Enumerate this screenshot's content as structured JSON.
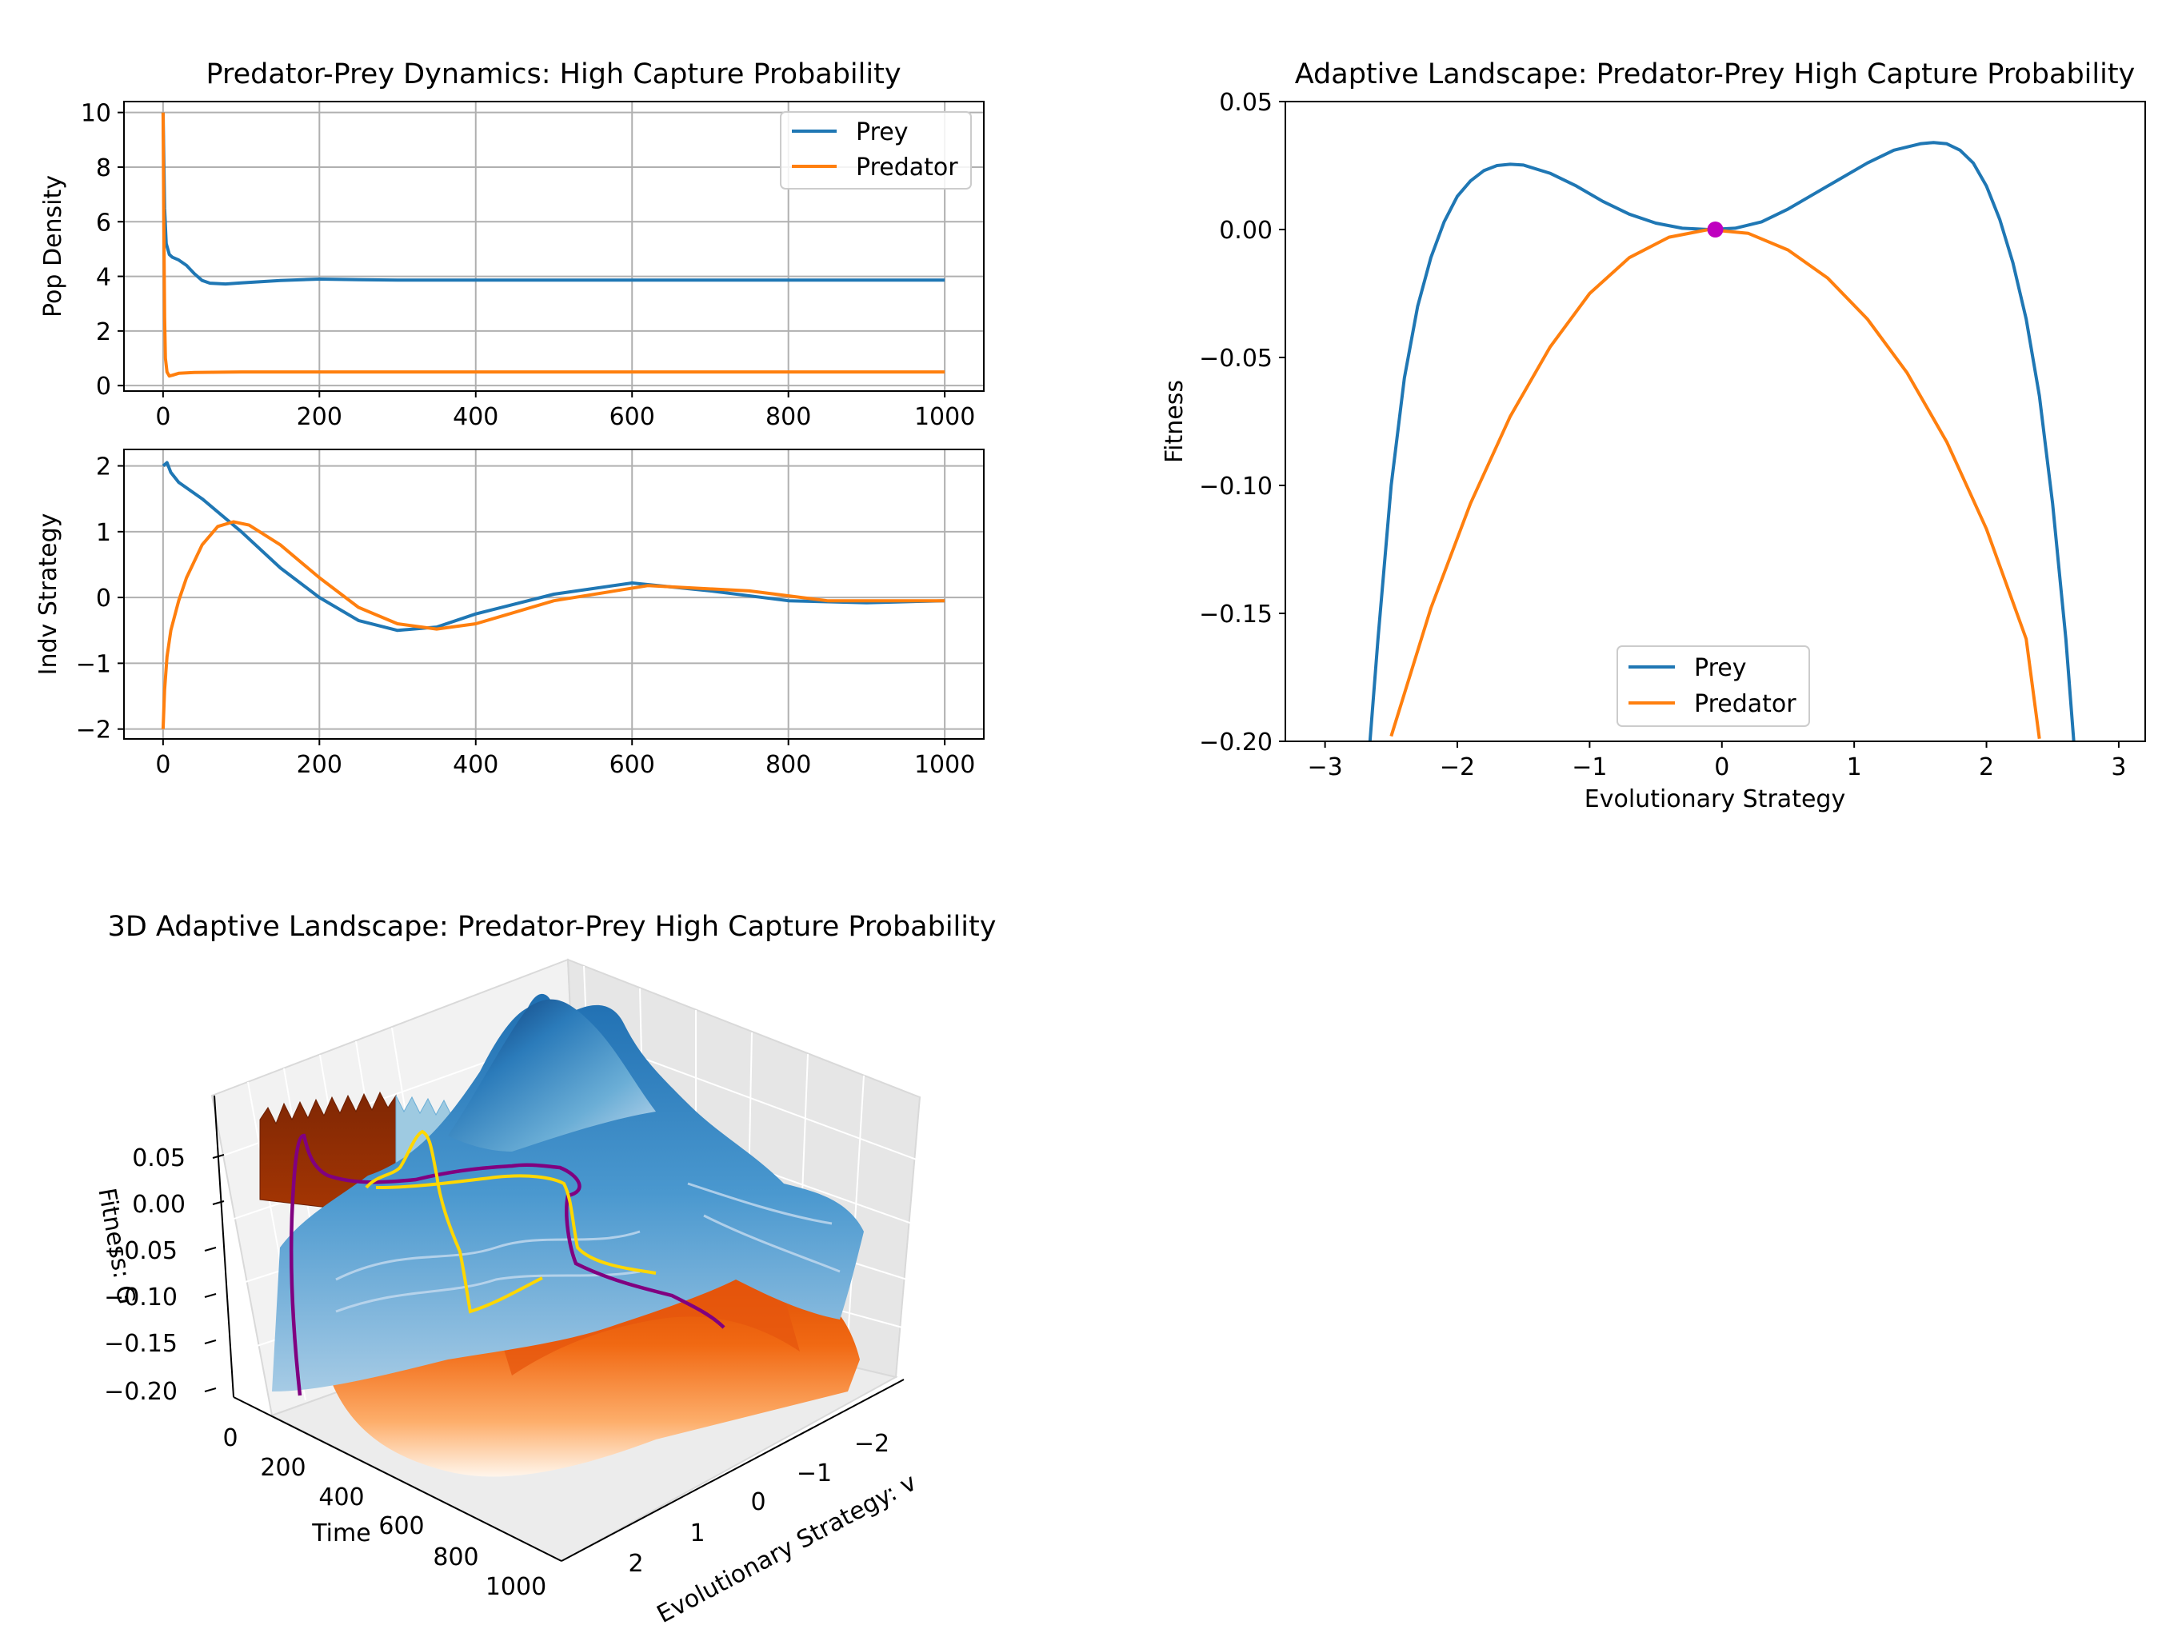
{
  "colors": {
    "prey": "#1f77b4",
    "predator": "#ff7f0e",
    "eq_point": "#bf00bf",
    "prey_traj3d": "#800080",
    "pred_traj3d": "#ffd700",
    "grid": "#b0b0b0"
  },
  "chart_data": [
    {
      "type": "line",
      "title": "Predator-Prey Dynamics: High Capture Probability",
      "xlabel": "",
      "ylabel": "Pop Density",
      "xlim": [
        -50,
        1050
      ],
      "ylim": [
        -0.2,
        10.4
      ],
      "xticks": [
        "0",
        "200",
        "400",
        "600",
        "800",
        "1000"
      ],
      "yticks": [
        "0",
        "2",
        "4",
        "6",
        "8",
        "10"
      ],
      "xtick_values": [
        0,
        200,
        400,
        600,
        800,
        1000
      ],
      "ytick_values": [
        0,
        2,
        4,
        6,
        8,
        10
      ],
      "grid": true,
      "legend_position": "upper right",
      "series": [
        {
          "name": "Prey",
          "x": [
            0,
            2,
            4,
            8,
            12,
            20,
            30,
            40,
            50,
            60,
            80,
            100,
            150,
            200,
            250,
            300,
            400,
            600,
            800,
            1000
          ],
          "values": [
            10,
            6.5,
            5.2,
            4.8,
            4.7,
            4.6,
            4.4,
            4.1,
            3.85,
            3.75,
            3.72,
            3.76,
            3.85,
            3.9,
            3.88,
            3.86,
            3.86,
            3.86,
            3.86,
            3.86
          ]
        },
        {
          "name": "Predator",
          "x": [
            0,
            1,
            2,
            3,
            5,
            8,
            12,
            20,
            40,
            100,
            200,
            400,
            600,
            800,
            1000
          ],
          "values": [
            10,
            6.0,
            2.5,
            1.0,
            0.5,
            0.35,
            0.38,
            0.45,
            0.48,
            0.5,
            0.5,
            0.5,
            0.5,
            0.5,
            0.5
          ]
        }
      ]
    },
    {
      "type": "line",
      "title": "",
      "xlabel": "",
      "ylabel": "Indv Strategy",
      "xlim": [
        -50,
        1050
      ],
      "ylim": [
        -2.15,
        2.25
      ],
      "xticks": [
        "0",
        "200",
        "400",
        "600",
        "800",
        "1000"
      ],
      "yticks": [
        "2",
        "1",
        "0",
        "−1",
        "−2"
      ],
      "xtick_values": [
        0,
        200,
        400,
        600,
        800,
        1000
      ],
      "ytick_values": [
        2,
        1,
        0,
        -1,
        -2
      ],
      "grid": true,
      "series": [
        {
          "name": "Prey",
          "x": [
            0,
            5,
            10,
            20,
            50,
            100,
            150,
            200,
            250,
            300,
            350,
            400,
            500,
            600,
            700,
            800,
            900,
            1000
          ],
          "values": [
            2.0,
            2.05,
            1.9,
            1.75,
            1.5,
            1.0,
            0.45,
            0.0,
            -0.35,
            -0.5,
            -0.45,
            -0.25,
            0.05,
            0.22,
            0.1,
            -0.05,
            -0.08,
            -0.05
          ]
        },
        {
          "name": "Predator",
          "x": [
            0,
            2,
            5,
            10,
            20,
            30,
            50,
            70,
            90,
            110,
            150,
            200,
            250,
            300,
            350,
            400,
            500,
            620,
            750,
            850,
            1000
          ],
          "values": [
            -2.0,
            -1.4,
            -0.9,
            -0.5,
            -0.05,
            0.3,
            0.8,
            1.08,
            1.15,
            1.1,
            0.8,
            0.3,
            -0.15,
            -0.4,
            -0.48,
            -0.4,
            -0.05,
            0.18,
            0.1,
            -0.05,
            -0.05
          ]
        }
      ]
    },
    {
      "type": "line",
      "title": "Adaptive Landscape: Predator-Prey High Capture Probability",
      "xlabel": "Evolutionary Strategy",
      "ylabel": "Fitness",
      "xlim": [
        -3.3,
        3.2
      ],
      "ylim": [
        -0.2,
        0.05
      ],
      "xticks": [
        "−3",
        "−2",
        "−1",
        "0",
        "1",
        "2",
        "3"
      ],
      "yticks": [
        "0.05",
        "0.00",
        "−0.05",
        "−0.10",
        "−0.15",
        "−0.20"
      ],
      "xtick_values": [
        -3,
        -2,
        -1,
        0,
        1,
        2,
        3
      ],
      "ytick_values": [
        0.05,
        0,
        -0.05,
        -0.1,
        -0.15,
        -0.2
      ],
      "grid": false,
      "legend_position": "lower center",
      "series": [
        {
          "name": "Prey",
          "x": [
            -2.66,
            -2.6,
            -2.5,
            -2.4,
            -2.3,
            -2.2,
            -2.1,
            -2.0,
            -1.9,
            -1.8,
            -1.7,
            -1.6,
            -1.5,
            -1.3,
            -1.1,
            -0.9,
            -0.7,
            -0.5,
            -0.3,
            -0.1,
            0.1,
            0.3,
            0.5,
            0.7,
            0.9,
            1.1,
            1.3,
            1.5,
            1.6,
            1.7,
            1.8,
            1.9,
            2.0,
            2.1,
            2.2,
            2.3,
            2.4,
            2.5,
            2.6,
            2.66
          ],
          "values": [
            -0.2,
            -0.16,
            -0.1,
            -0.058,
            -0.03,
            -0.011,
            0.003,
            0.013,
            0.019,
            0.023,
            0.025,
            0.0255,
            0.0252,
            0.022,
            0.017,
            0.011,
            0.006,
            0.0025,
            0.0005,
            0.0,
            0.0005,
            0.003,
            0.008,
            0.014,
            0.02,
            0.026,
            0.031,
            0.0335,
            0.034,
            0.0335,
            0.031,
            0.026,
            0.017,
            0.004,
            -0.013,
            -0.035,
            -0.065,
            -0.107,
            -0.16,
            -0.2
          ],
          "dash": "solid"
        },
        {
          "name": "Predator",
          "x": [
            -2.5,
            -2.2,
            -1.9,
            -1.6,
            -1.3,
            -1.0,
            -0.7,
            -0.4,
            -0.1,
            0.2,
            0.5,
            0.8,
            1.1,
            1.4,
            1.7,
            2.0,
            2.3,
            2.4
          ],
          "values": [
            -0.198,
            -0.148,
            -0.107,
            -0.073,
            -0.046,
            -0.025,
            -0.011,
            -0.003,
            0.0,
            -0.0015,
            -0.008,
            -0.019,
            -0.035,
            -0.056,
            -0.083,
            -0.117,
            -0.16,
            -0.199
          ]
        }
      ],
      "annotations": [
        {
          "type": "point",
          "x": -0.05,
          "y": 0.0
        }
      ]
    },
    {
      "type": "surface3d",
      "title": "3D Adaptive Landscape: Predator-Prey High Capture Probability",
      "xlabel": "Evolutionary Strategy: v",
      "ylabel": "Time",
      "zlabel": "Fitness: G",
      "xticks": [
        "2",
        "1",
        "0",
        "−1",
        "−2"
      ],
      "yticks": [
        "0",
        "200",
        "400",
        "600",
        "800",
        "1000"
      ],
      "zticks": [
        "0.05",
        "0.00",
        "−0.05",
        "−0.10",
        "−0.15",
        "−0.20"
      ]
    }
  ]
}
